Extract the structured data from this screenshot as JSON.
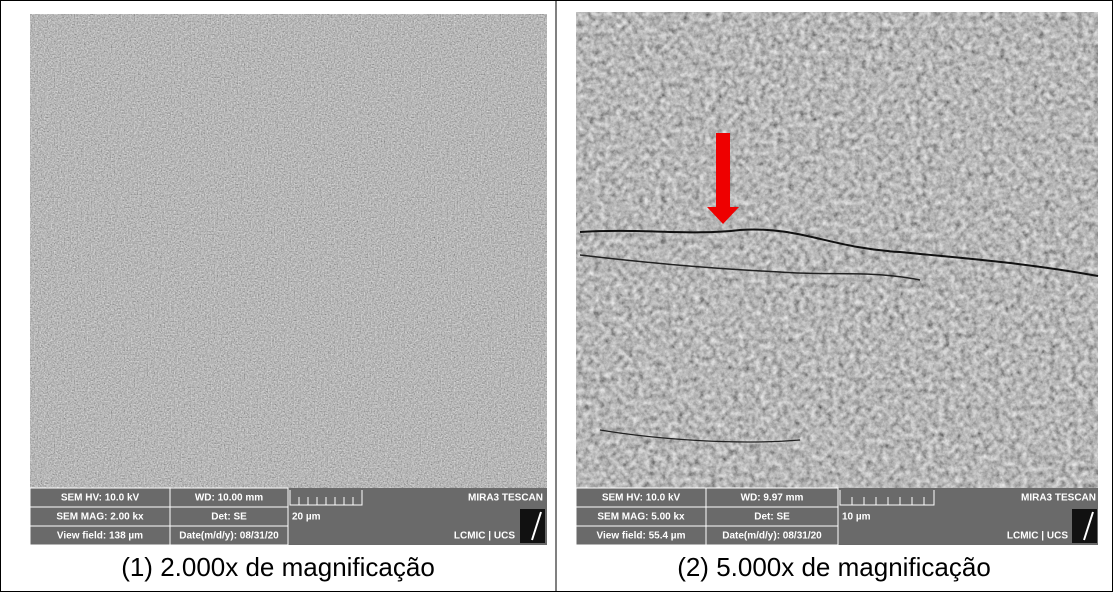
{
  "panels": [
    {
      "info": {
        "hv": "SEM HV: 10.0 kV",
        "wd": "WD: 10.00 mm",
        "mag": "SEM MAG: 2.00 kx",
        "det": "Det: SE",
        "view": "View field: 138 µm",
        "date": "Date(m/d/y): 08/31/20",
        "scale": "20 µm",
        "brand": "MIRA3 TESCAN",
        "lab": "LCMIC | UCS"
      },
      "caption": "(1) 2.000x de magnificação"
    },
    {
      "info": {
        "hv": "SEM HV: 10.0 kV",
        "wd": "WD: 9.97 mm",
        "mag": "SEM MAG: 5.00 kx",
        "det": "Det: SE",
        "view": "View field: 55.4 µm",
        "date": "Date(m/d/y): 08/31/20",
        "scale": "10 µm",
        "brand": "MIRA3 TESCAN",
        "lab": "LCMIC | UCS"
      },
      "caption": "(2) 5.000x de magnificação"
    }
  ]
}
